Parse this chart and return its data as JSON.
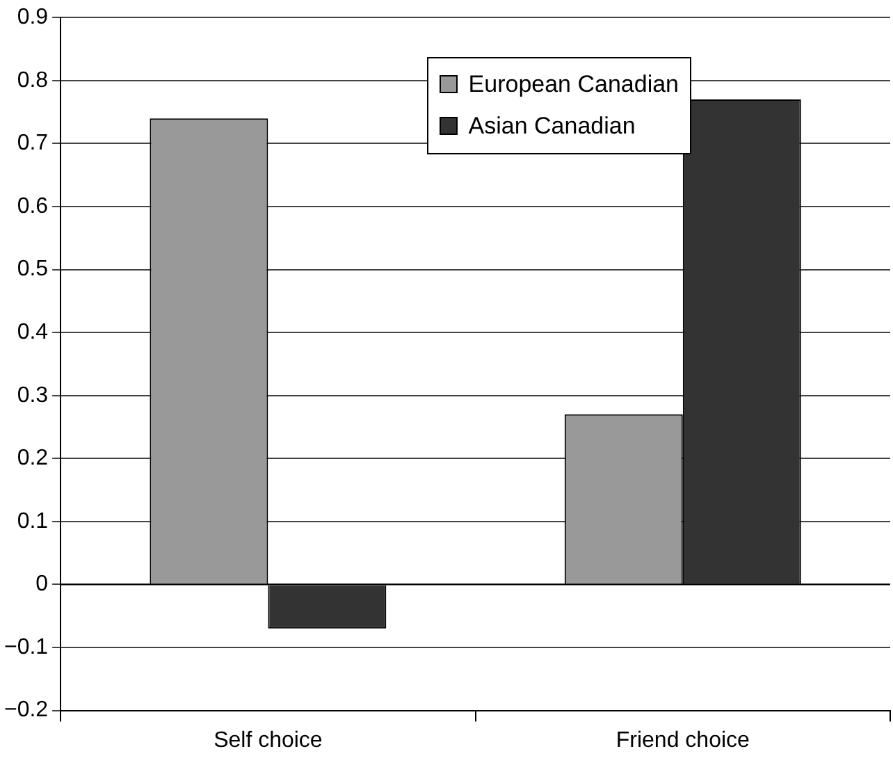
{
  "chart_data": {
    "type": "bar",
    "categories": [
      "Self choice",
      "Friend choice"
    ],
    "series": [
      {
        "name": "European Canadian",
        "color": "#999999",
        "values": [
          0.74,
          0.27
        ]
      },
      {
        "name": "Asian Canadian",
        "color": "#333333",
        "values": [
          -0.07,
          0.77
        ]
      }
    ],
    "ylim": [
      -0.2,
      0.9
    ],
    "yticks": [
      {
        "value": -0.2,
        "label": "−0.2"
      },
      {
        "value": -0.1,
        "label": "−0.1"
      },
      0,
      0.1,
      0.2,
      0.3,
      0.4,
      0.5,
      0.6,
      0.7,
      0.8,
      0.9
    ],
    "grid": "y",
    "legend": "top"
  }
}
